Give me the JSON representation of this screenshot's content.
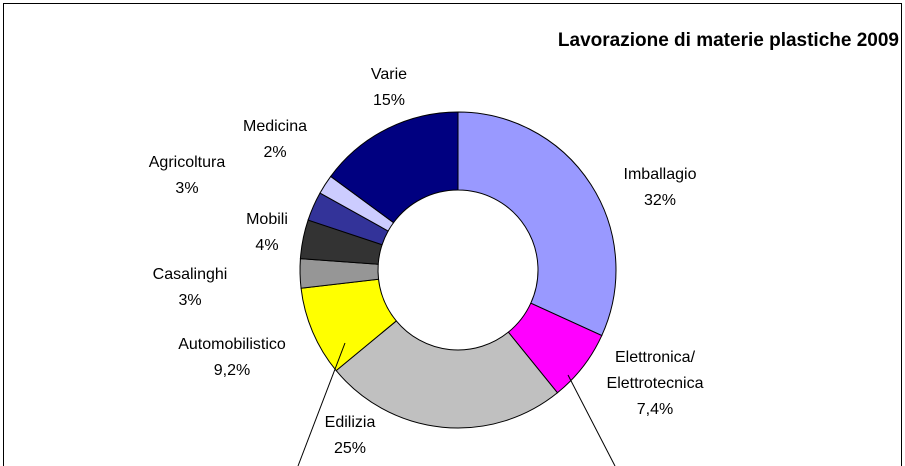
{
  "chart_data": {
    "type": "donut",
    "title": "Lavorazione di materie plastiche 2009",
    "categories": [
      "Imballagio",
      "Elettronica/ Elettrotecnica",
      "Edilizia",
      "Automobilistico",
      "Casalinghi",
      "Mobili",
      "Agricoltura",
      "Medicina",
      "Varie"
    ],
    "values": [
      32,
      7.4,
      25,
      9.2,
      3,
      4,
      3,
      2,
      15
    ],
    "value_labels": [
      "32%",
      "7,4%",
      "25%",
      "9,2%",
      "3%",
      "4%",
      "3%",
      "2%",
      "15%"
    ],
    "colors": [
      "#9999ff",
      "#ff00ff",
      "#c0c0c0",
      "#ffff00",
      "#969696",
      "#333333",
      "#333399",
      "#ccccff",
      "#000080"
    ]
  }
}
